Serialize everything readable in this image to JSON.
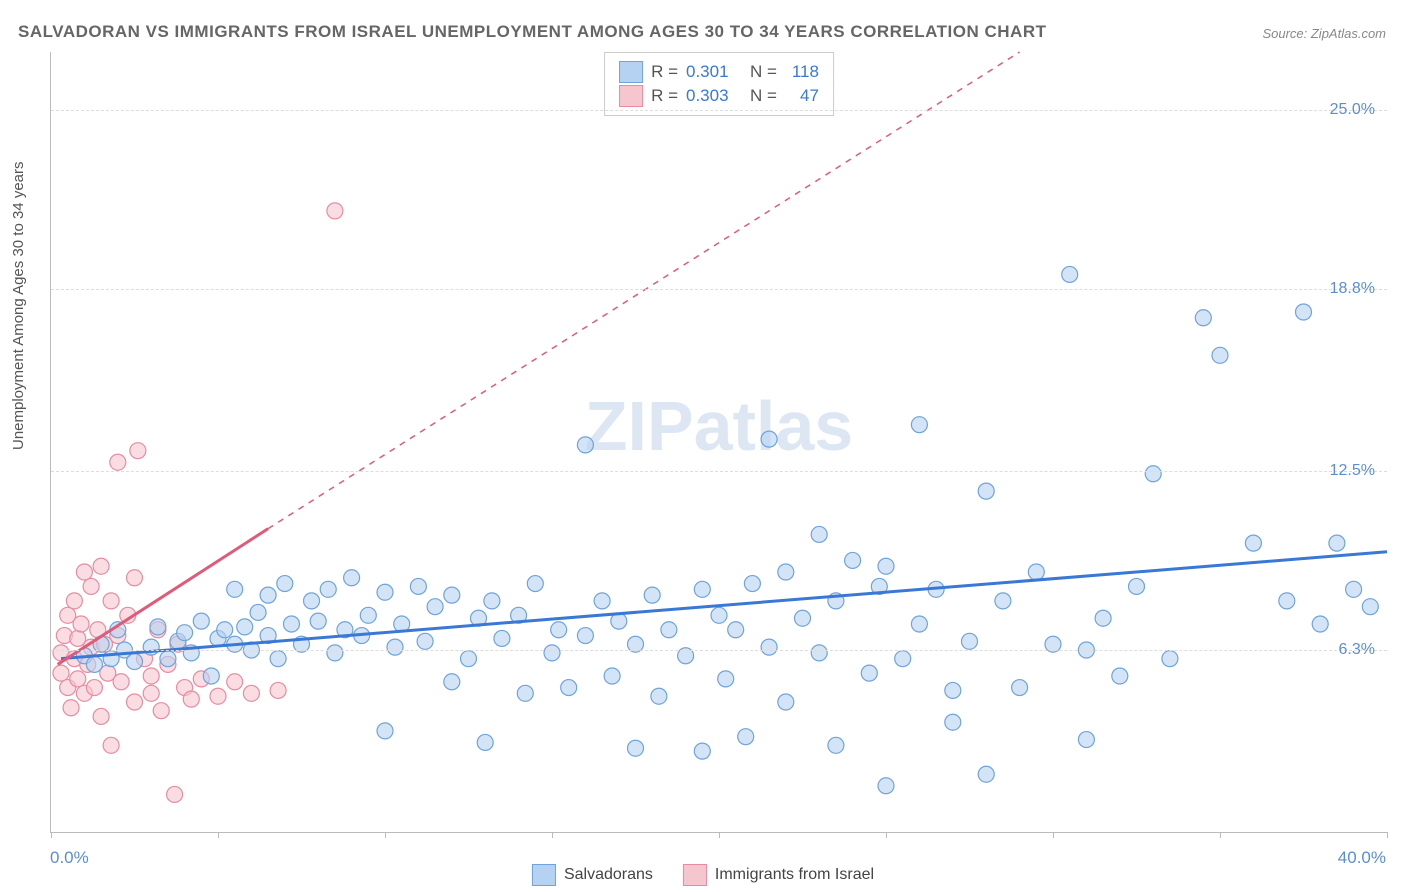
{
  "title": "SALVADORAN VS IMMIGRANTS FROM ISRAEL UNEMPLOYMENT AMONG AGES 30 TO 34 YEARS CORRELATION CHART",
  "source": "Source: ZipAtlas.com",
  "ylabel": "Unemployment Among Ages 30 to 34 years",
  "watermark": "ZIPatlas",
  "chart": {
    "type": "scatter",
    "background_color": "#ffffff",
    "grid_color": "#dddddd",
    "axis_color": "#bbbbbb",
    "tick_label_color": "#5b8dd6",
    "tick_label_fontsize": 16,
    "title_color": "#666666",
    "title_fontsize": 17,
    "xlim": [
      0.0,
      40.0
    ],
    "ylim": [
      0.0,
      27.0
    ],
    "xticks_at": [
      0,
      5,
      10,
      15,
      20,
      25,
      30,
      35,
      40
    ],
    "x_min_label": "0.0%",
    "x_max_label": "40.0%",
    "yticks": [
      {
        "v": 6.3,
        "label": "6.3%"
      },
      {
        "v": 12.5,
        "label": "12.5%"
      },
      {
        "v": 18.8,
        "label": "18.8%"
      },
      {
        "v": 25.0,
        "label": "25.0%"
      }
    ],
    "marker_radius": 8,
    "marker_stroke_width": 1.2,
    "trend_line_width": 3,
    "trend_dash_width": 1.5,
    "series": [
      {
        "name": "Salvadorans",
        "fill": "#b6d2f2",
        "stroke": "#6fa3db",
        "line_color": "#3a78d6",
        "r_label": "R =",
        "r_value": "0.301",
        "n_label": "N =",
        "n_value": "118",
        "trend": {
          "x1": 0.3,
          "y1": 6.0,
          "x2": 40.0,
          "y2": 9.7
        },
        "points": [
          [
            1.0,
            6.1
          ],
          [
            1.3,
            5.8
          ],
          [
            1.5,
            6.5
          ],
          [
            1.8,
            6.0
          ],
          [
            2.0,
            7.0
          ],
          [
            2.2,
            6.3
          ],
          [
            2.5,
            5.9
          ],
          [
            3.0,
            6.4
          ],
          [
            3.2,
            7.1
          ],
          [
            3.5,
            6.0
          ],
          [
            3.8,
            6.6
          ],
          [
            4.0,
            6.9
          ],
          [
            4.2,
            6.2
          ],
          [
            4.5,
            7.3
          ],
          [
            4.8,
            5.4
          ],
          [
            5.0,
            6.7
          ],
          [
            5.2,
            7.0
          ],
          [
            5.5,
            8.4
          ],
          [
            5.5,
            6.5
          ],
          [
            5.8,
            7.1
          ],
          [
            6.0,
            6.3
          ],
          [
            6.2,
            7.6
          ],
          [
            6.5,
            8.2
          ],
          [
            6.8,
            6.0
          ],
          [
            6.5,
            6.8
          ],
          [
            7.0,
            8.6
          ],
          [
            7.2,
            7.2
          ],
          [
            7.5,
            6.5
          ],
          [
            7.8,
            8.0
          ],
          [
            8.0,
            7.3
          ],
          [
            8.3,
            8.4
          ],
          [
            8.5,
            6.2
          ],
          [
            8.8,
            7.0
          ],
          [
            9.0,
            8.8
          ],
          [
            9.3,
            6.8
          ],
          [
            9.5,
            7.5
          ],
          [
            10.0,
            8.3
          ],
          [
            10.0,
            3.5
          ],
          [
            10.3,
            6.4
          ],
          [
            10.5,
            7.2
          ],
          [
            11.0,
            8.5
          ],
          [
            11.2,
            6.6
          ],
          [
            11.5,
            7.8
          ],
          [
            12.0,
            8.2
          ],
          [
            12.0,
            5.2
          ],
          [
            12.5,
            6.0
          ],
          [
            12.8,
            7.4
          ],
          [
            13.0,
            3.1
          ],
          [
            13.2,
            8.0
          ],
          [
            13.5,
            6.7
          ],
          [
            14.0,
            7.5
          ],
          [
            14.2,
            4.8
          ],
          [
            14.5,
            8.6
          ],
          [
            15.0,
            6.2
          ],
          [
            15.2,
            7.0
          ],
          [
            15.5,
            5.0
          ],
          [
            16.0,
            6.8
          ],
          [
            16.0,
            13.4
          ],
          [
            16.5,
            8.0
          ],
          [
            16.8,
            5.4
          ],
          [
            17.0,
            7.3
          ],
          [
            17.5,
            6.5
          ],
          [
            17.5,
            2.9
          ],
          [
            18.0,
            8.2
          ],
          [
            18.2,
            4.7
          ],
          [
            18.5,
            7.0
          ],
          [
            19.0,
            6.1
          ],
          [
            19.5,
            8.4
          ],
          [
            19.5,
            2.8
          ],
          [
            20.0,
            7.5
          ],
          [
            20.2,
            5.3
          ],
          [
            20.5,
            7.0
          ],
          [
            20.8,
            3.3
          ],
          [
            21.0,
            8.6
          ],
          [
            21.5,
            6.4
          ],
          [
            21.5,
            13.6
          ],
          [
            22.0,
            9.0
          ],
          [
            22.0,
            4.5
          ],
          [
            22.5,
            7.4
          ],
          [
            23.0,
            10.3
          ],
          [
            23.0,
            6.2
          ],
          [
            23.5,
            8.0
          ],
          [
            23.5,
            3.0
          ],
          [
            24.0,
            9.4
          ],
          [
            24.5,
            5.5
          ],
          [
            24.8,
            8.5
          ],
          [
            25.0,
            9.2
          ],
          [
            25.0,
            1.6
          ],
          [
            25.5,
            6.0
          ],
          [
            26.0,
            7.2
          ],
          [
            26.0,
            14.1
          ],
          [
            26.5,
            8.4
          ],
          [
            27.0,
            3.8
          ],
          [
            27.0,
            4.9
          ],
          [
            27.5,
            6.6
          ],
          [
            28.0,
            11.8
          ],
          [
            28.0,
            2.0
          ],
          [
            28.5,
            8.0
          ],
          [
            29.0,
            5.0
          ],
          [
            29.5,
            9.0
          ],
          [
            30.0,
            6.5
          ],
          [
            30.5,
            19.3
          ],
          [
            31.0,
            6.3
          ],
          [
            31.0,
            3.2
          ],
          [
            31.5,
            7.4
          ],
          [
            32.0,
            5.4
          ],
          [
            32.5,
            8.5
          ],
          [
            33.0,
            12.4
          ],
          [
            33.5,
            6.0
          ],
          [
            34.5,
            17.8
          ],
          [
            35.0,
            16.5
          ],
          [
            36.0,
            10.0
          ],
          [
            37.0,
            8.0
          ],
          [
            37.5,
            18.0
          ],
          [
            38.0,
            7.2
          ],
          [
            38.5,
            10.0
          ],
          [
            39.0,
            8.4
          ],
          [
            39.5,
            7.8
          ]
        ]
      },
      {
        "name": "Immigrants from Israel",
        "fill": "#f6c6cf",
        "stroke": "#e88ba0",
        "line_color": "#e05a7a",
        "r_label": "R =",
        "r_value": "0.303",
        "n_label": "N =",
        "n_value": "47",
        "trend_solid": {
          "x1": 0.2,
          "y1": 5.8,
          "x2": 6.5,
          "y2": 10.5
        },
        "trend_dash": {
          "x1": 6.5,
          "y1": 10.5,
          "x2": 29.0,
          "y2": 27.0
        },
        "points": [
          [
            0.3,
            5.5
          ],
          [
            0.3,
            6.2
          ],
          [
            0.4,
            6.8
          ],
          [
            0.5,
            5.0
          ],
          [
            0.5,
            7.5
          ],
          [
            0.6,
            4.3
          ],
          [
            0.7,
            6.0
          ],
          [
            0.7,
            8.0
          ],
          [
            0.8,
            5.3
          ],
          [
            0.8,
            6.7
          ],
          [
            0.9,
            7.2
          ],
          [
            1.0,
            4.8
          ],
          [
            1.0,
            9.0
          ],
          [
            1.1,
            5.8
          ],
          [
            1.2,
            6.4
          ],
          [
            1.2,
            8.5
          ],
          [
            1.3,
            5.0
          ],
          [
            1.4,
            7.0
          ],
          [
            1.5,
            9.2
          ],
          [
            1.5,
            4.0
          ],
          [
            1.6,
            6.5
          ],
          [
            1.7,
            5.5
          ],
          [
            1.8,
            8.0
          ],
          [
            1.8,
            3.0
          ],
          [
            2.0,
            6.8
          ],
          [
            2.0,
            12.8
          ],
          [
            2.1,
            5.2
          ],
          [
            2.3,
            7.5
          ],
          [
            2.5,
            4.5
          ],
          [
            2.5,
            8.8
          ],
          [
            2.6,
            13.2
          ],
          [
            2.8,
            6.0
          ],
          [
            3.0,
            5.4
          ],
          [
            3.0,
            4.8
          ],
          [
            3.2,
            7.0
          ],
          [
            3.3,
            4.2
          ],
          [
            3.5,
            5.8
          ],
          [
            3.8,
            6.5
          ],
          [
            4.0,
            5.0
          ],
          [
            4.2,
            4.6
          ],
          [
            4.5,
            5.3
          ],
          [
            3.7,
            1.3
          ],
          [
            5.0,
            4.7
          ],
          [
            5.5,
            5.2
          ],
          [
            6.0,
            4.8
          ],
          [
            6.8,
            4.9
          ],
          [
            8.5,
            21.5
          ]
        ]
      }
    ],
    "legend": {
      "series1_label": "Salvadorans",
      "series2_label": "Immigrants from Israel"
    }
  }
}
